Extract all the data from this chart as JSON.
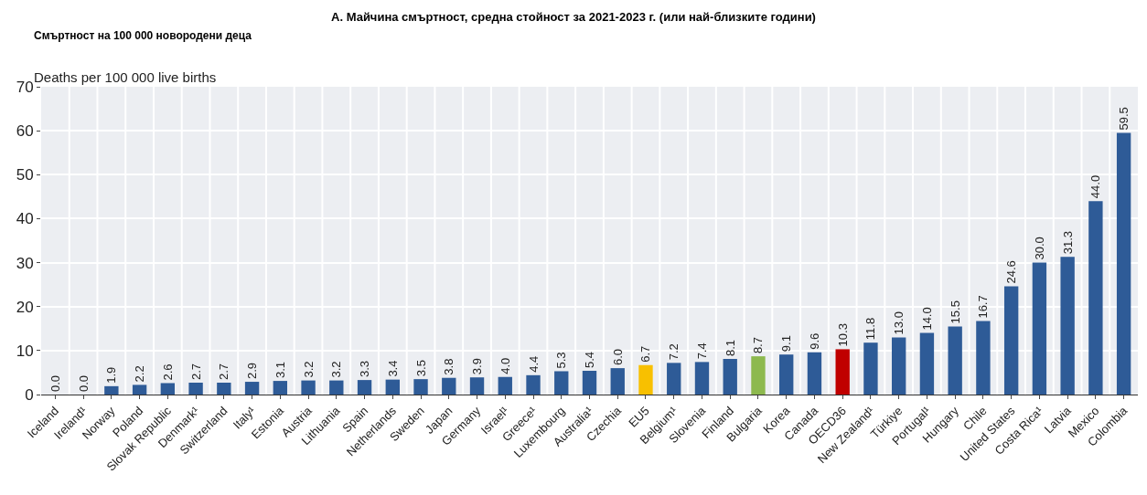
{
  "chart_data": {
    "type": "bar",
    "title": "A. Майчина смъртност, средна стойност за 2021-2023 г. (или най-близките години)",
    "subtitle": "Смъртност на 100 000 новородени деца",
    "ylabel": "Deaths per 100 000 live births",
    "categories": [
      "Iceland",
      "Ireland¹",
      "Norway",
      "Poland",
      "Slovak Republic",
      "Denmark¹",
      "Switzerland",
      "Italy¹",
      "Estonia",
      "Austria",
      "Lithuania",
      "Spain",
      "Netherlands",
      "Sweden",
      "Japan",
      "Germany",
      "Israel¹",
      "Greece¹",
      "Luxembourg",
      "Australia¹",
      "Czechia",
      "EU5",
      "Belgium¹",
      "Slovenia",
      "Finland",
      "Bulgaria",
      "Korea",
      "Canada",
      "OECD36",
      "New Zealand¹",
      "Türkiye",
      "Portugal¹",
      "Hungary",
      "Chile",
      "United States",
      "Costa Rica¹",
      "Latvia",
      "Mexico",
      "Colombia"
    ],
    "values": [
      0.0,
      0.0,
      1.9,
      2.2,
      2.6,
      2.7,
      2.7,
      2.9,
      3.1,
      3.2,
      3.2,
      3.3,
      3.4,
      3.5,
      3.8,
      3.9,
      4.0,
      4.4,
      5.3,
      5.4,
      6.0,
      6.7,
      7.2,
      7.4,
      8.1,
      8.7,
      9.1,
      9.6,
      10.3,
      11.8,
      13.0,
      14.0,
      15.5,
      16.7,
      24.6,
      30.0,
      31.3,
      44.0,
      59.5
    ],
    "colors": [
      "#2e5b97",
      "#2e5b97",
      "#2e5b97",
      "#2e5b97",
      "#2e5b97",
      "#2e5b97",
      "#2e5b97",
      "#2e5b97",
      "#2e5b97",
      "#2e5b97",
      "#2e5b97",
      "#2e5b97",
      "#2e5b97",
      "#2e5b97",
      "#2e5b97",
      "#2e5b97",
      "#2e5b97",
      "#2e5b97",
      "#2e5b97",
      "#2e5b97",
      "#2e5b97",
      "#f8c000",
      "#2e5b97",
      "#2e5b97",
      "#2e5b97",
      "#8db94e",
      "#2e5b97",
      "#2e5b97",
      "#c00000",
      "#2e5b97",
      "#2e5b97",
      "#2e5b97",
      "#2e5b97",
      "#2e5b97",
      "#2e5b97",
      "#2e5b97",
      "#2e5b97",
      "#2e5b97",
      "#2e5b97"
    ],
    "value_labels": [
      "0.0",
      "0.0",
      "1.9",
      "2.2",
      "2.6",
      "2.7",
      "2.7",
      "2.9",
      "3.1",
      "3.2",
      "3.2",
      "3.3",
      "3.4",
      "3.5",
      "3.8",
      "3.9",
      "4.0",
      "4.4",
      "5.3",
      "5.4",
      "6.0",
      "6.7",
      "7.2",
      "7.4",
      "8.1",
      "8.7",
      "9.1",
      "9.6",
      "10.3",
      "11.8",
      "13.0",
      "14.0",
      "15.5",
      "16.7",
      "24.6",
      "30.0",
      "31.3",
      "44.0",
      "59.5"
    ],
    "ylim": [
      0,
      70
    ],
    "yticks": [
      0,
      10,
      20,
      30,
      40,
      50,
      60,
      70
    ],
    "grid": true
  }
}
